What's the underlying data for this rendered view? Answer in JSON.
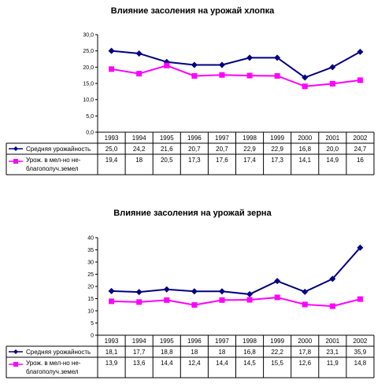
{
  "chart_data": [
    {
      "type": "line",
      "title": "Влияние засоления на урожай  хлопка",
      "categories": [
        "1993",
        "1994",
        "1995",
        "1996",
        "1997",
        "1998",
        "1999",
        "2000",
        "2001",
        "2002"
      ],
      "ylim": [
        0,
        30
      ],
      "yticks": [
        "0,0",
        "5,0",
        "10,0",
        "15,0",
        "20,0",
        "25,0",
        "30,0"
      ],
      "grid": false,
      "legend": "data table",
      "series": [
        {
          "name": "Средняя урожайность",
          "values": [
            25.0,
            24.2,
            21.6,
            20.7,
            20.7,
            22.9,
            22.9,
            16.8,
            20.0,
            24.7
          ],
          "labels": [
            "25,0",
            "24,2",
            "21,6",
            "20,7",
            "20,7",
            "22,9",
            "22,9",
            "16,8",
            "20,0",
            "24,7"
          ],
          "color": "#000080",
          "marker": "diamond"
        },
        {
          "name": "Урож. в мел-но не-благополуч.земел",
          "values": [
            19.4,
            18,
            20.5,
            17.3,
            17.6,
            17.4,
            17.3,
            14.1,
            14.9,
            16
          ],
          "labels": [
            "19,4",
            "18",
            "20,5",
            "17,3",
            "17,6",
            "17,4",
            "17,3",
            "14,1",
            "14,9",
            "16"
          ],
          "color": "#ff00ff",
          "marker": "square"
        }
      ]
    },
    {
      "type": "line",
      "title": "Влияние засоления на урожай зерна",
      "categories": [
        "1993",
        "1994",
        "1995",
        "1996",
        "1997",
        "1998",
        "1999",
        "2000",
        "2001",
        "2002"
      ],
      "ylim": [
        0,
        40
      ],
      "yticks": [
        "0",
        "5",
        "10",
        "15",
        "20",
        "25",
        "30",
        "35",
        "40"
      ],
      "grid": false,
      "legend": "data table",
      "series": [
        {
          "name": "Средняя урожайность",
          "values": [
            18.1,
            17.7,
            18.8,
            18,
            18,
            16.8,
            22.2,
            17.8,
            23.1,
            35.9
          ],
          "labels": [
            "18,1",
            "17,7",
            "18,8",
            "18",
            "18",
            "16,8",
            "22,2",
            "17,8",
            "23,1",
            "35,9"
          ],
          "color": "#000080",
          "marker": "diamond"
        },
        {
          "name": "Урож. в мел-но не-благополуч.земел",
          "values": [
            13.9,
            13.6,
            14.4,
            12.4,
            14.4,
            14.5,
            15.5,
            12.6,
            11.9,
            14.8
          ],
          "labels": [
            "13,9",
            "13,6",
            "14,4",
            "12,4",
            "14,4",
            "14,5",
            "15,5",
            "12,6",
            "11,9",
            "14,8"
          ],
          "color": "#ff00ff",
          "marker": "square"
        }
      ]
    }
  ]
}
